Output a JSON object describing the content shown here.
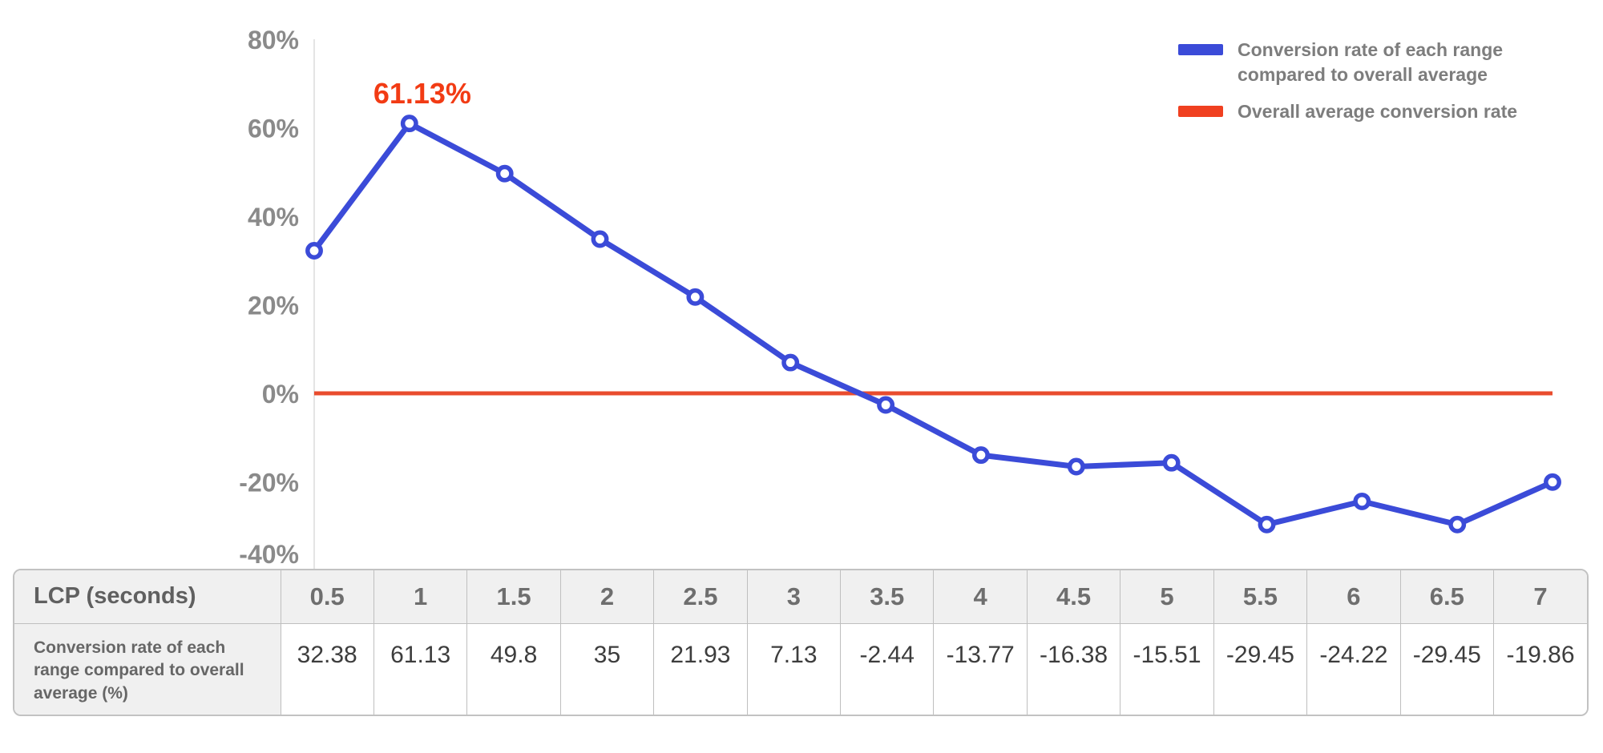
{
  "colors": {
    "series_blue": "#3b4bd8",
    "average_red": "#e94c2e",
    "legend_red": "#f04020",
    "annotation_red": "#f23b14",
    "axis_line": "#dcdcdc",
    "tick_text": "#8a8a8a",
    "legend_text": "#7d7d7d"
  },
  "chart_data": {
    "type": "line",
    "title": "",
    "xlabel": "LCP (seconds)",
    "ylabel": "",
    "x": [
      0.5,
      1,
      1.5,
      2,
      2.5,
      3,
      3.5,
      4,
      4.5,
      5,
      5.5,
      6,
      6.5,
      7
    ],
    "series": [
      {
        "name": "Conversion rate of each range compared to overall average",
        "values": [
          32.38,
          61.13,
          49.8,
          35,
          21.93,
          7.13,
          -2.44,
          -13.77,
          -16.38,
          -15.51,
          -29.45,
          -24.22,
          -29.45,
          -19.86
        ],
        "color_key": "series_blue"
      }
    ],
    "average_line": {
      "name": "Overall average conversion rate",
      "value": 0,
      "color_key": "average_red"
    },
    "ylim": [
      -40,
      80
    ],
    "y_ticks": [
      {
        "value": 80,
        "label": "80%"
      },
      {
        "value": 60,
        "label": "60%"
      },
      {
        "value": 40,
        "label": "40%"
      },
      {
        "value": 20,
        "label": "20%"
      },
      {
        "value": 0,
        "label": "0%"
      },
      {
        "value": -20,
        "label": "-20%"
      },
      {
        "value": -40,
        "label": "-40%"
      }
    ],
    "grid": "off",
    "legend_position": "top-right",
    "annotation": {
      "text": "61.13%",
      "point_index": 1
    }
  },
  "legend": {
    "entries": [
      {
        "id": "conversion",
        "lines": [
          "Conversion rate of each range",
          "compared to overall average"
        ],
        "color_key": "series_blue"
      },
      {
        "id": "average",
        "lines": [
          "Overall average conversion rate"
        ],
        "color_key": "legend_red"
      }
    ]
  },
  "table": {
    "header_label": "LCP (seconds)",
    "columns": [
      "0.5",
      "1",
      "1.5",
      "2",
      "2.5",
      "3",
      "3.5",
      "4",
      "4.5",
      "5",
      "5.5",
      "6",
      "6.5",
      "7"
    ],
    "row_label": "Conversion rate of each range compared to overall average (%)",
    "values": [
      "32.38",
      "61.13",
      "49.8",
      "35",
      "21.93",
      "7.13",
      "-2.44",
      "-13.77",
      "-16.38",
      "-15.51",
      "-29.45",
      "-24.22",
      "-29.45",
      "-19.86"
    ]
  }
}
